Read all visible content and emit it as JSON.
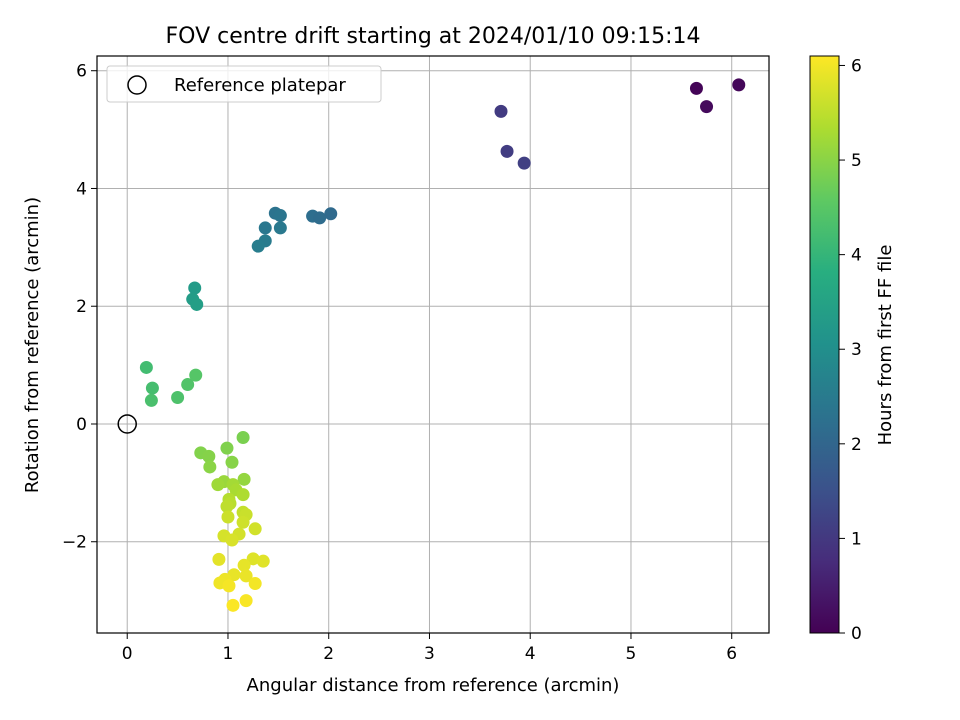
{
  "chart_data": {
    "type": "scatter",
    "title": "FOV centre drift starting at 2024/01/10 09:15:14",
    "xlabel": "Angular distance from reference (arcmin)",
    "ylabel": "Rotation from reference (arcmin)",
    "xlim": [
      -0.3,
      6.37
    ],
    "ylim": [
      -3.55,
      6.25
    ],
    "xticks": [
      0,
      1,
      2,
      3,
      4,
      5,
      6
    ],
    "yticks": [
      -2,
      0,
      2,
      4,
      6
    ],
    "xtick_labels": [
      "0",
      "1",
      "2",
      "3",
      "4",
      "5",
      "6"
    ],
    "ytick_labels": [
      "−2",
      "0",
      "2",
      "4",
      "6"
    ],
    "grid": true,
    "legend": {
      "position": "top-left",
      "entries": [
        "Reference platepar"
      ]
    },
    "reference_point": {
      "x": 0,
      "y": 0
    },
    "colorbar": {
      "label": "Hours from first FF file",
      "colormap": "viridis",
      "range": [
        0,
        6.1
      ],
      "ticks": [
        0,
        1,
        2,
        3,
        4,
        5,
        6
      ],
      "tick_labels": [
        "0",
        "1",
        "2",
        "3",
        "4",
        "5",
        "6"
      ]
    },
    "points": [
      {
        "x": 5.65,
        "y": 5.7,
        "c": 0.05
      },
      {
        "x": 6.07,
        "y": 5.76,
        "c": 0.1
      },
      {
        "x": 5.75,
        "y": 5.39,
        "c": 0.15
      },
      {
        "x": 3.71,
        "y": 5.31,
        "c": 1.05
      },
      {
        "x": 3.77,
        "y": 4.63,
        "c": 1.1
      },
      {
        "x": 3.94,
        "y": 4.43,
        "c": 1.15
      },
      {
        "x": 1.47,
        "y": 3.58,
        "c": 2.3
      },
      {
        "x": 1.52,
        "y": 3.54,
        "c": 2.35
      },
      {
        "x": 1.37,
        "y": 3.33,
        "c": 2.4
      },
      {
        "x": 1.52,
        "y": 3.33,
        "c": 2.45
      },
      {
        "x": 1.37,
        "y": 3.11,
        "c": 2.5
      },
      {
        "x": 1.3,
        "y": 3.02,
        "c": 2.55
      },
      {
        "x": 1.84,
        "y": 3.53,
        "c": 2.2
      },
      {
        "x": 1.91,
        "y": 3.5,
        "c": 2.15
      },
      {
        "x": 2.02,
        "y": 3.57,
        "c": 2.1
      },
      {
        "x": 0.67,
        "y": 2.31,
        "c": 3.3
      },
      {
        "x": 0.65,
        "y": 2.12,
        "c": 3.35
      },
      {
        "x": 0.69,
        "y": 2.03,
        "c": 3.4
      },
      {
        "x": 0.19,
        "y": 0.96,
        "c": 4.2
      },
      {
        "x": 0.25,
        "y": 0.61,
        "c": 4.25
      },
      {
        "x": 0.24,
        "y": 0.4,
        "c": 4.3
      },
      {
        "x": 0.5,
        "y": 0.45,
        "c": 4.35
      },
      {
        "x": 0.6,
        "y": 0.67,
        "c": 4.4
      },
      {
        "x": 0.68,
        "y": 0.83,
        "c": 4.45
      },
      {
        "x": 1.15,
        "y": -0.23,
        "c": 4.85
      },
      {
        "x": 0.99,
        "y": -0.41,
        "c": 4.9
      },
      {
        "x": 0.73,
        "y": -0.49,
        "c": 4.92
      },
      {
        "x": 0.81,
        "y": -0.55,
        "c": 4.95
      },
      {
        "x": 1.04,
        "y": -0.65,
        "c": 4.97
      },
      {
        "x": 0.82,
        "y": -0.73,
        "c": 5.0
      },
      {
        "x": 1.16,
        "y": -0.94,
        "c": 5.1
      },
      {
        "x": 0.96,
        "y": -0.98,
        "c": 5.15
      },
      {
        "x": 0.9,
        "y": -1.03,
        "c": 5.2
      },
      {
        "x": 1.05,
        "y": -1.03,
        "c": 5.25
      },
      {
        "x": 1.08,
        "y": -1.12,
        "c": 5.3
      },
      {
        "x": 1.15,
        "y": -1.2,
        "c": 5.35
      },
      {
        "x": 1.01,
        "y": -1.28,
        "c": 5.4
      },
      {
        "x": 1.02,
        "y": -1.35,
        "c": 5.45
      },
      {
        "x": 0.99,
        "y": -1.4,
        "c": 5.5
      },
      {
        "x": 1.15,
        "y": -1.5,
        "c": 5.55
      },
      {
        "x": 1.18,
        "y": -1.54,
        "c": 5.6
      },
      {
        "x": 1.0,
        "y": -1.58,
        "c": 5.62
      },
      {
        "x": 1.15,
        "y": -1.67,
        "c": 5.65
      },
      {
        "x": 1.27,
        "y": -1.78,
        "c": 5.68
      },
      {
        "x": 1.11,
        "y": -1.87,
        "c": 5.7
      },
      {
        "x": 0.96,
        "y": -1.9,
        "c": 5.72
      },
      {
        "x": 1.04,
        "y": -1.97,
        "c": 5.75
      },
      {
        "x": 1.25,
        "y": -2.29,
        "c": 5.8
      },
      {
        "x": 1.35,
        "y": -2.33,
        "c": 5.82
      },
      {
        "x": 0.91,
        "y": -2.3,
        "c": 5.85
      },
      {
        "x": 1.16,
        "y": -2.4,
        "c": 5.88
      },
      {
        "x": 1.06,
        "y": -2.56,
        "c": 5.9
      },
      {
        "x": 1.18,
        "y": -2.58,
        "c": 5.92
      },
      {
        "x": 0.97,
        "y": -2.64,
        "c": 5.95
      },
      {
        "x": 0.92,
        "y": -2.7,
        "c": 5.97
      },
      {
        "x": 1.27,
        "y": -2.71,
        "c": 6.0
      },
      {
        "x": 1.01,
        "y": -2.75,
        "c": 6.02
      },
      {
        "x": 1.18,
        "y": -3.0,
        "c": 6.05
      },
      {
        "x": 1.05,
        "y": -3.08,
        "c": 6.08
      }
    ]
  }
}
